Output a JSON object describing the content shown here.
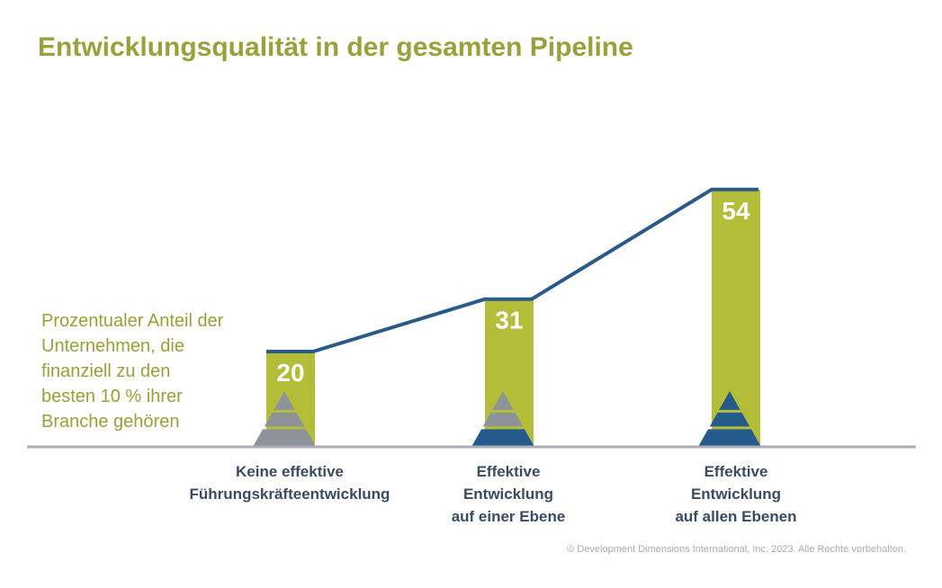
{
  "title": "Entwicklungsqualität in der gesamten Pipeline",
  "side_note": [
    "Prozentualer Anteil der",
    "Unternehmen, die",
    "finanziell zu den",
    "besten 10 % ihrer",
    "Branche gehören"
  ],
  "copyright": "© Development Dimensions International, Inc. 2023. Alle Rechte vorbehalten.",
  "colors": {
    "title": "#9aa03a",
    "bar": "#b4bd37",
    "line": "#2a5a8a",
    "pyramid_gray": "#8e939a",
    "pyramid_blue": "#245a8c",
    "axis": "#a7aeb6",
    "category_text": "#3b4b62"
  },
  "chart_data": {
    "type": "bar",
    "categories": [
      [
        "Keine effektive",
        "Führungskräfteentwicklung"
      ],
      [
        "Effektive",
        "Entwicklung",
        "auf einer Ebene"
      ],
      [
        "Effektive",
        "Entwicklung",
        "auf allen Ebenen"
      ]
    ],
    "values": [
      20,
      31,
      54
    ],
    "value_labels": [
      "20",
      "31",
      "54"
    ],
    "pyramid_icons": [
      [
        "gray",
        "gray",
        "gray"
      ],
      [
        "gray",
        "gray",
        "blue"
      ],
      [
        "blue",
        "blue",
        "blue"
      ]
    ],
    "connecting_line": true,
    "ylim": [
      0,
      54
    ]
  }
}
